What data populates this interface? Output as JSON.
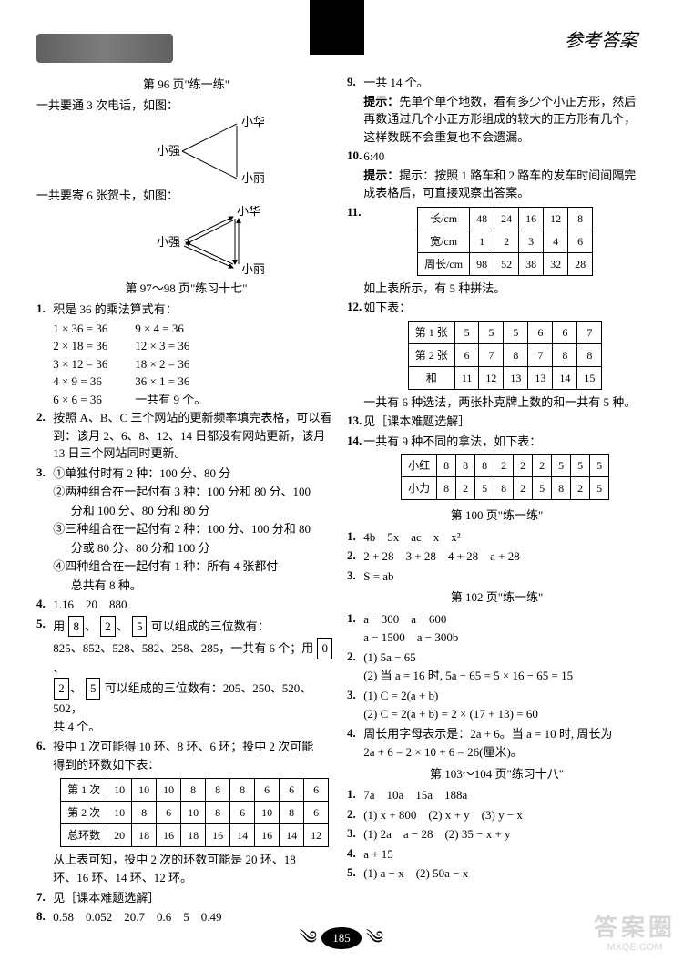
{
  "header": {
    "title": "参考答案"
  },
  "left": {
    "sec96": {
      "title": "第 96 页\"练一练\"",
      "intro1": "一共要通 3 次电话，如图：",
      "names": {
        "a": "小华",
        "b": "小强",
        "c": "小丽"
      },
      "intro2": "一共要寄 6 张贺卡，如图："
    },
    "sec97": {
      "title": "第 97～98 页\"练习十七\"",
      "q1_intro": "积是 36 的乘法算式有：",
      "q1_eqs": [
        [
          "1 × 36 = 36",
          "9 × 4 = 36"
        ],
        [
          "2 × 18 = 36",
          "12 × 3 = 36"
        ],
        [
          "3 × 12 = 36",
          "18 × 2 = 36"
        ],
        [
          "4 × 9 = 36",
          "36 × 1 = 36"
        ],
        [
          "6 × 6 = 36",
          "一共有 9 个。"
        ]
      ],
      "q2": "按照 A、B、C 三个网站的更新频率填完表格，可以看到：该月 2、6、8、12、14 日都没有网站更新，该月 13 日三个网站同时更新。",
      "q3_1": "①单独付时有 2 种：100 分、80 分",
      "q3_2a": "②两种组合在一起付有 3 种：100 分和 80 分、100",
      "q3_2b": "分和 100 分、80 分和 80 分",
      "q3_3a": "③三种组合在一起付有 2 种：100 分、100 分和 80",
      "q3_3b": "分或 80 分、80 分和 100 分",
      "q3_4a": "④四种组合在一起付有 1 种：所有 4 张都付",
      "q3_4b": "总共有 8 种。",
      "q4": "1.16　20　880",
      "q5a_pre": "用",
      "q5a_d1": "8",
      "q5a_d2": "2",
      "q5a_d3": "5",
      "q5a_post": "可以组成的三位数有：",
      "q5b_pre": "825、852、528、582、258、285，一共有 6 个；用",
      "q5b_d0": "0",
      "q5b_d2": "2",
      "q5b_d5": "5",
      "q5b_post": "可以组成的三位数有：205、250、520、502，",
      "q5c": "共 4 个。",
      "q6a": "投中 1 次可能得 10 环、8 环、6 环；投中 2 次可能",
      "q6b": "得到的环数如下表：",
      "q6_h1": "第 1 次",
      "q6_h2": "第 2 次",
      "q6_h3": "总环数",
      "q6_r1": [
        "10",
        "10",
        "10",
        "8",
        "8",
        "8",
        "6",
        "6",
        "6"
      ],
      "q6_r2": [
        "10",
        "8",
        "6",
        "10",
        "8",
        "6",
        "10",
        "8",
        "6"
      ],
      "q6_r3": [
        "20",
        "18",
        "16",
        "18",
        "16",
        "14",
        "16",
        "14",
        "12"
      ],
      "q6c": "从上表可知，投中 2 次的环数可能是 20 环、18",
      "q6d": "环、16 环、14 环、12 环。",
      "q7": "见［课本难题选解］",
      "q8": "0.58　0.052　20.7　0.6　5　0.49"
    }
  },
  "right": {
    "q9a": "一共 14 个。",
    "q9_hint": "提示：先单个单个地数，看有多少个小正方形，然后再数通过几个小正方形组成的较大的正方形有几个，这样数既不会重复也不会遗漏。",
    "q10": "6:40",
    "q10_hint": "提示：按照 1 路车和 2 路车的发车时间间隔完成表格后，可直接观察出答案。",
    "q11_h1": "长/cm",
    "q11_h2": "宽/cm",
    "q11_h3": "周长/cm",
    "q11_r1": [
      "48",
      "24",
      "16",
      "12",
      "8"
    ],
    "q11_r2": [
      "1",
      "2",
      "3",
      "4",
      "6"
    ],
    "q11_r3": [
      "98",
      "52",
      "38",
      "32",
      "28"
    ],
    "q11_note": "如上表所示，有 5 种拼法。",
    "q12_intro": "如下表：",
    "q12_h1": "第 1 张",
    "q12_h2": "第 2 张",
    "q12_h3": "和",
    "q12_r1": [
      "5",
      "5",
      "5",
      "6",
      "6",
      "7"
    ],
    "q12_r2": [
      "6",
      "7",
      "8",
      "7",
      "8",
      "8"
    ],
    "q12_r3": [
      "11",
      "12",
      "13",
      "13",
      "14",
      "15"
    ],
    "q12_note": "一共有 6 种选法，两张扑克牌上数的和一共有 5 种。",
    "q13": "见［课本难题选解］",
    "q14_intro": "一共有 9 种不同的拿法，如下表：",
    "q14_h1": "小红",
    "q14_h2": "小力",
    "q14_r1": [
      "8",
      "8",
      "8",
      "2",
      "2",
      "2",
      "5",
      "5",
      "5"
    ],
    "q14_r2": [
      "8",
      "2",
      "5",
      "8",
      "2",
      "5",
      "8",
      "2",
      "5"
    ],
    "sec100": {
      "title": "第 100 页\"练一练\"",
      "l1": "4b　5x　ac　x　x²",
      "l2": "2 + 28　3 + 28　4 + 28　a + 28",
      "l3": "S = ab"
    },
    "sec102": {
      "title": "第 102 页\"练一练\"",
      "l1a": "a − 300　a − 600",
      "l1b": "a − 1500　a − 300b",
      "l2a": "(1) 5a − 65",
      "l2b": "(2) 当 a = 16 时, 5a − 65 = 5 × 16 − 65 = 15",
      "l3a": "(1) C = 2(a + b)",
      "l3b": "(2) C = 2(a + b) = 2 × (17 + 13) = 60",
      "l4a": "周长用字母表示是：2a + 6。当 a = 10 时, 周长为",
      "l4b": "2a + 6 = 2 × 10 + 6 = 26(厘米)。"
    },
    "sec103": {
      "title": "第 103～104 页\"练习十八\"",
      "l1": "7a　10a　15a　188a",
      "l2": "(1) x + 800　(2) x + y　(3) y − x",
      "l3": "(1) 2a　a − 28　(2) 35 − x + y",
      "l4": "a + 15",
      "l5": "(1) a − x　(2) 50a − x"
    }
  },
  "footer": {
    "page": "185"
  },
  "watermark": {
    "a": "答案圈",
    "b": "MXQE.COM"
  }
}
